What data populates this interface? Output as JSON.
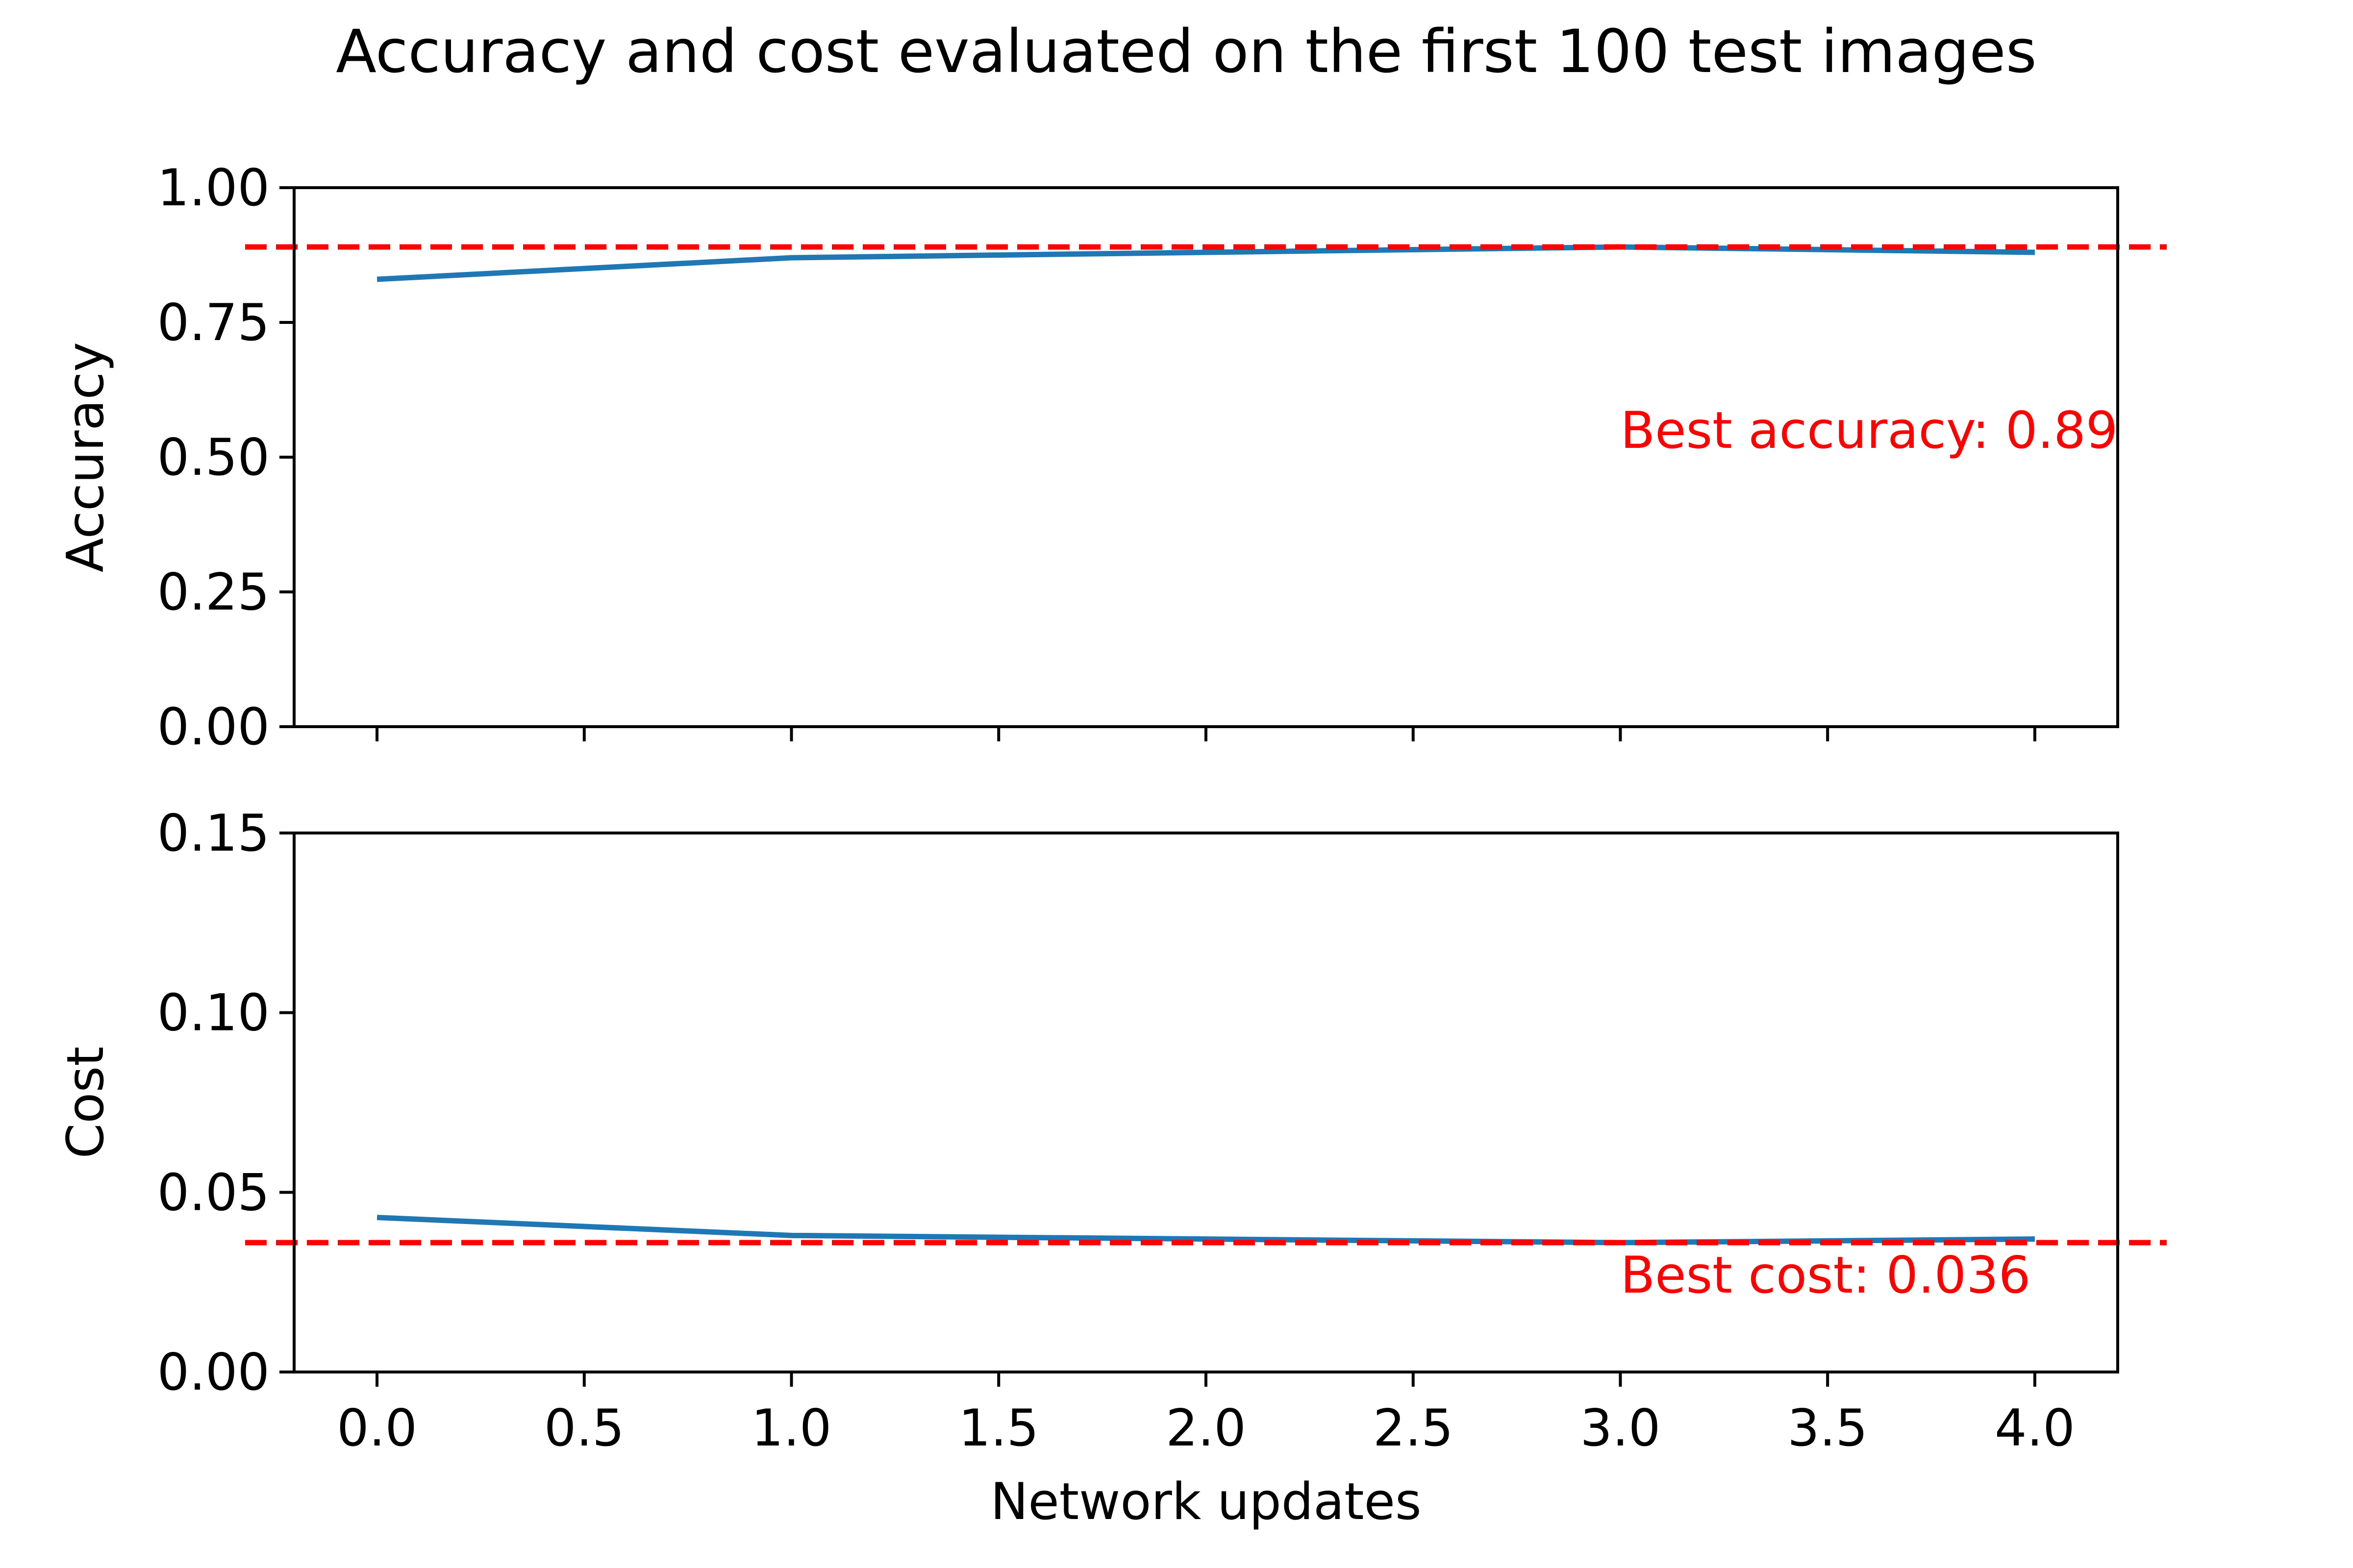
{
  "colors": {
    "series": "#1f77b4",
    "reference": "#ff0000",
    "axis": "#000000",
    "background": "#ffffff"
  },
  "chart_data": [
    {
      "type": "line",
      "title": "Accuracy and cost evaluated on the first 100 test images",
      "xlabel": "",
      "ylabel": "Accuracy",
      "xlim": [
        -0.2,
        4.2
      ],
      "ylim": [
        0.0,
        1.0
      ],
      "xticks": [
        0.0,
        0.5,
        1.0,
        1.5,
        2.0,
        2.5,
        3.0,
        3.5,
        4.0
      ],
      "xtick_labels_visible": false,
      "yticks": [
        0.0,
        0.25,
        0.5,
        0.75,
        1.0
      ],
      "ytick_labels": [
        "0.00",
        "0.25",
        "0.50",
        "0.75",
        "1.00"
      ],
      "grid": false,
      "series": [
        {
          "x": [
            0,
            1,
            2,
            3,
            4
          ],
          "y": [
            0.83,
            0.87,
            0.88,
            0.89,
            0.88
          ]
        }
      ],
      "reference_line": {
        "y": 0.89,
        "style": "dashed"
      },
      "annotation": {
        "text": "Best accuracy: 0.89",
        "x": 3.0,
        "y": 0.55
      }
    },
    {
      "type": "line",
      "xlabel": "Network updates",
      "ylabel": "Cost",
      "xlim": [
        -0.2,
        4.2
      ],
      "ylim": [
        0.0,
        0.15
      ],
      "xticks": [
        0.0,
        0.5,
        1.0,
        1.5,
        2.0,
        2.5,
        3.0,
        3.5,
        4.0
      ],
      "xtick_labels": [
        "0.0",
        "0.5",
        "1.0",
        "1.5",
        "2.0",
        "2.5",
        "3.0",
        "3.5",
        "4.0"
      ],
      "yticks": [
        0.0,
        0.05,
        0.1,
        0.15
      ],
      "ytick_labels": [
        "0.00",
        "0.05",
        "0.10",
        "0.15"
      ],
      "grid": false,
      "series": [
        {
          "x": [
            0,
            1,
            2,
            3,
            4
          ],
          "y": [
            0.043,
            0.038,
            0.037,
            0.036,
            0.037
          ]
        }
      ],
      "reference_line": {
        "y": 0.036,
        "style": "dashed"
      },
      "annotation": {
        "text": "Best cost: 0.036",
        "x": 3.0,
        "y": 0.027
      }
    }
  ]
}
